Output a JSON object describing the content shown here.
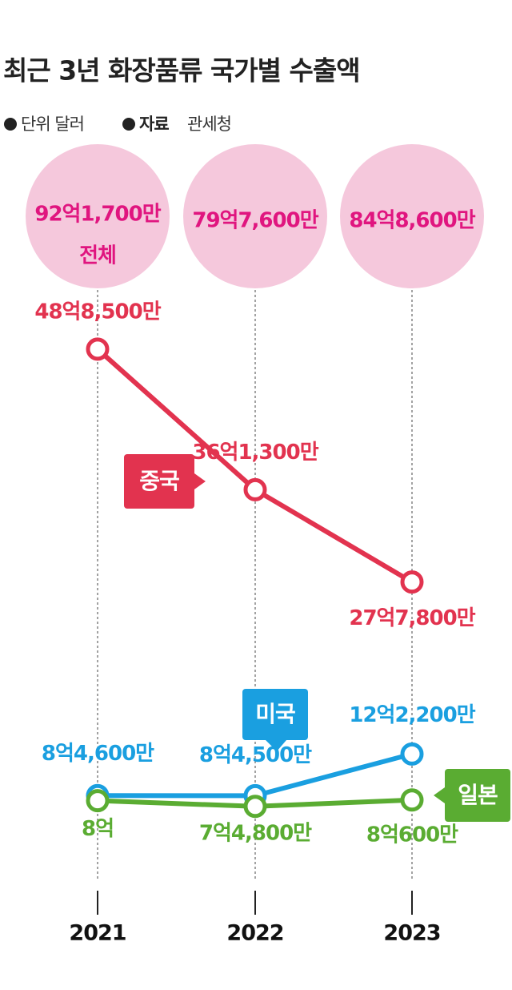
{
  "chart_data": {
    "type": "line",
    "title": "최근 3년 화장품류 국가별 수출액",
    "unit": "단위 달러",
    "source_label": "자료",
    "source": "관세청",
    "categories": [
      "2021",
      "2022",
      "2023"
    ],
    "totals": {
      "name": "전체",
      "color": "#f5c8dc",
      "text_color": "#e0157f",
      "values": [
        92.17,
        79.76,
        84.86
      ],
      "value_labels": [
        "92억1,700만",
        "79억7,600만",
        "84억8,600만"
      ]
    },
    "series": [
      {
        "name": "중국",
        "color": "#e2334f",
        "values": [
          48.85,
          36.13,
          27.78
        ],
        "value_labels": [
          "48억8,500만",
          "36억1,300만",
          "27억7,800만"
        ]
      },
      {
        "name": "미국",
        "color": "#1a9fe0",
        "values": [
          8.46,
          8.45,
          12.22
        ],
        "value_labels": [
          "8억4,600만",
          "8억4,500만",
          "12억2,200만"
        ]
      },
      {
        "name": "일본",
        "color": "#5aac32",
        "values": [
          8.0,
          7.48,
          8.06
        ],
        "value_labels": [
          "8억",
          "7억4,800만",
          "8억600만"
        ]
      }
    ],
    "ylim": [
      0,
      50
    ],
    "log": false
  }
}
